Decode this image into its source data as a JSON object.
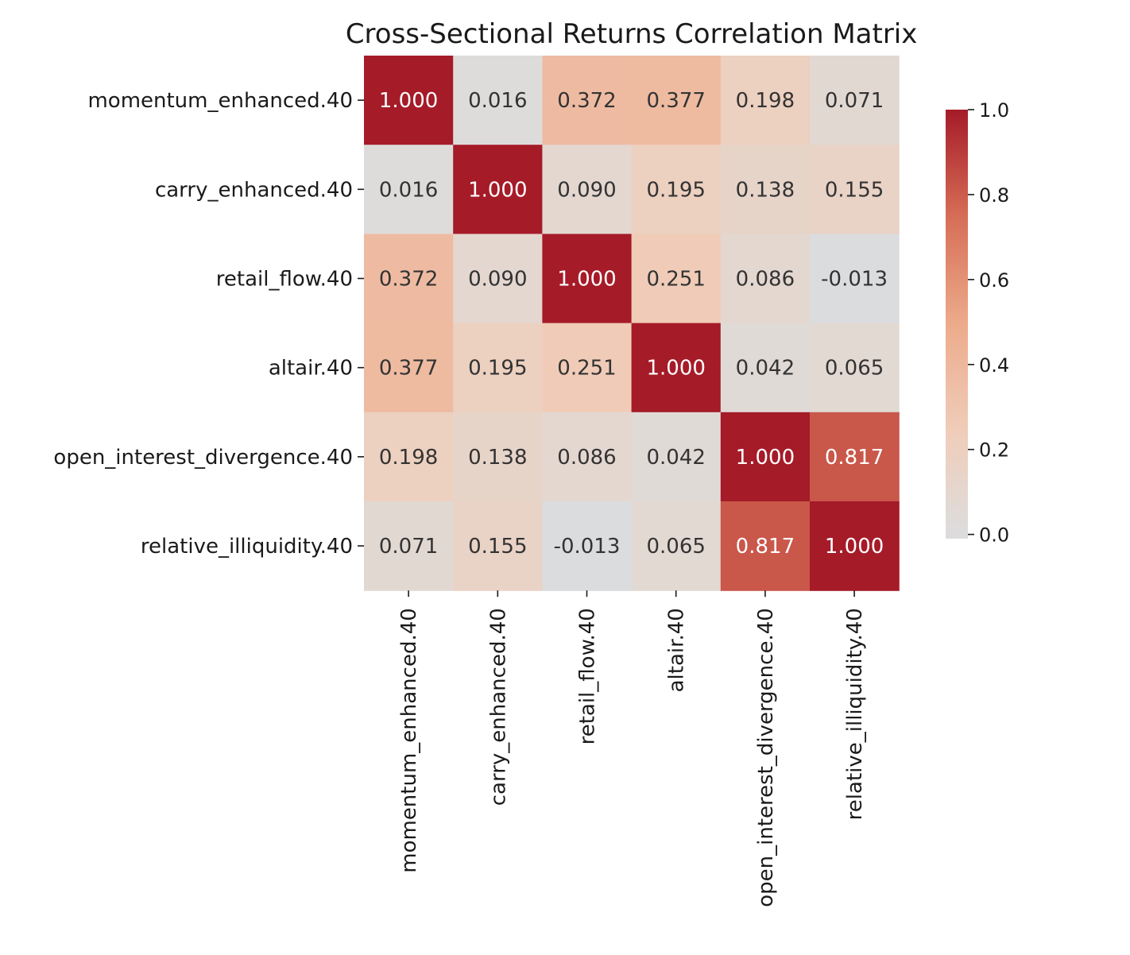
{
  "chart_data": {
    "type": "heatmap",
    "title": "Cross-Sectional Returns Correlation Matrix",
    "row_labels": [
      "momentum_enhanced.40",
      "carry_enhanced.40",
      "retail_flow.40",
      "altair.40",
      "open_interest_divergence.40",
      "relative_illiquidity.40"
    ],
    "col_labels": [
      "momentum_enhanced.40",
      "carry_enhanced.40",
      "retail_flow.40",
      "altair.40",
      "open_interest_divergence.40",
      "relative_illiquidity.40"
    ],
    "values": [
      [
        1.0,
        0.016,
        0.372,
        0.377,
        0.198,
        0.071
      ],
      [
        0.016,
        1.0,
        0.09,
        0.195,
        0.138,
        0.155
      ],
      [
        0.372,
        0.09,
        1.0,
        0.251,
        0.086,
        -0.013
      ],
      [
        0.377,
        0.195,
        0.251,
        1.0,
        0.042,
        0.065
      ],
      [
        0.198,
        0.138,
        0.086,
        0.042,
        1.0,
        0.817
      ],
      [
        0.071,
        0.155,
        -0.013,
        0.065,
        0.817,
        1.0
      ]
    ],
    "cell_labels": [
      [
        "1.000",
        "0.016",
        "0.372",
        "0.377",
        "0.198",
        "0.071"
      ],
      [
        "0.016",
        "1.000",
        "0.090",
        "0.195",
        "0.138",
        "0.155"
      ],
      [
        "0.372",
        "0.090",
        "1.000",
        "0.251",
        "0.086",
        "-0.013"
      ],
      [
        "0.377",
        "0.195",
        "0.251",
        "1.000",
        "0.042",
        "0.065"
      ],
      [
        "0.198",
        "0.138",
        "0.086",
        "0.042",
        "1.000",
        "0.817"
      ],
      [
        "0.071",
        "0.155",
        "-0.013",
        "0.065",
        "0.817",
        "1.000"
      ]
    ],
    "colormap": "coolwarm",
    "color_center": 0.0,
    "colorbar": {
      "range": [
        -0.01,
        1.0
      ],
      "ticks": [
        0.0,
        0.2,
        0.4,
        0.6,
        0.8,
        1.0
      ],
      "tick_labels": [
        "0.0",
        "0.2",
        "0.4",
        "0.6",
        "0.8",
        "1.0"
      ],
      "placement": "right"
    }
  }
}
